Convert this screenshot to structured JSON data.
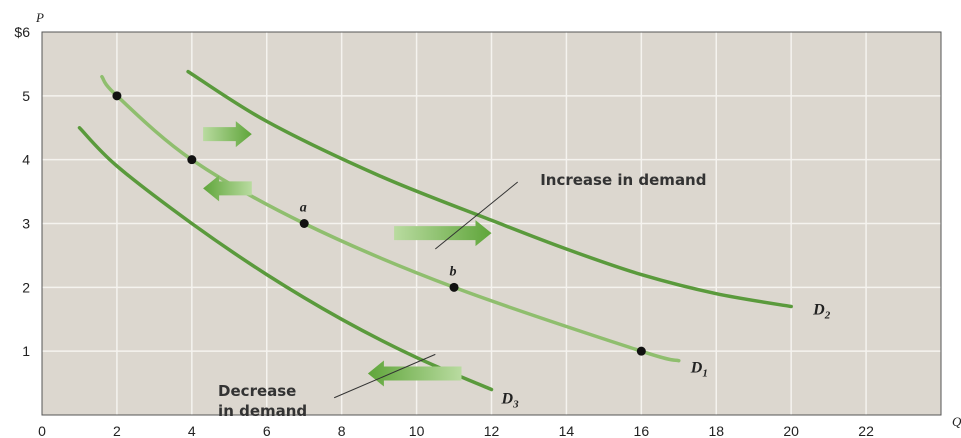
{
  "chart_data": {
    "type": "line",
    "y_axis_name": "P",
    "x_axis_name": "Q",
    "xlim": [
      0,
      24
    ],
    "ylim": [
      0,
      6
    ],
    "x_ticks": [
      0,
      2,
      4,
      6,
      8,
      10,
      12,
      14,
      16,
      18,
      20,
      22
    ],
    "x_tick_labels": [
      "0",
      "2",
      "4",
      "6",
      "8",
      "10",
      "12",
      "14",
      "16",
      "18",
      "20",
      "22"
    ],
    "y_ticks": [
      1,
      2,
      3,
      4,
      5,
      6
    ],
    "y_tick_labels": [
      "1",
      "2",
      "3",
      "4",
      "5",
      "$6"
    ],
    "grid": true,
    "colors": {
      "plot_background": "#dcd7cf",
      "grid": "#f5f3ef",
      "curve_outer": "#5a9a3c",
      "curve_d1": "#8fbe6e",
      "arrow_light": "#b9dba0",
      "arrow_dark": "#5fa53a",
      "point": "#111111"
    },
    "series": [
      {
        "name": "D1",
        "label_main": "D",
        "label_sub": "1",
        "points": [
          [
            1.6,
            5.3
          ],
          [
            2,
            5
          ],
          [
            4,
            4
          ],
          [
            7,
            3
          ],
          [
            11,
            2
          ],
          [
            16,
            1
          ],
          [
            17,
            0.85
          ]
        ]
      },
      {
        "name": "D2",
        "label_main": "D",
        "label_sub": "2",
        "points": [
          [
            3.9,
            5.38
          ],
          [
            6,
            4.6
          ],
          [
            9,
            3.75
          ],
          [
            12,
            3.05
          ],
          [
            14,
            2.6
          ],
          [
            16,
            2.2
          ],
          [
            18,
            1.9
          ],
          [
            20,
            1.7
          ]
        ]
      },
      {
        "name": "D3",
        "label_main": "D",
        "label_sub": "3",
        "points": [
          [
            1,
            4.5
          ],
          [
            2,
            3.9
          ],
          [
            4,
            3
          ],
          [
            6,
            2.2
          ],
          [
            8,
            1.5
          ],
          [
            10,
            0.9
          ],
          [
            12,
            0.4
          ]
        ]
      }
    ],
    "points": [
      {
        "x": 2,
        "y": 5,
        "label": ""
      },
      {
        "x": 4,
        "y": 4,
        "label": ""
      },
      {
        "x": 7,
        "y": 3,
        "label": "a"
      },
      {
        "x": 11,
        "y": 2,
        "label": "b"
      },
      {
        "x": 16,
        "y": 1,
        "label": ""
      }
    ],
    "arrows": [
      {
        "from": [
          4.3,
          4.4
        ],
        "to": [
          5.6,
          4.4
        ],
        "direction": "right"
      },
      {
        "from": [
          5.6,
          3.55
        ],
        "to": [
          4.3,
          3.55
        ],
        "direction": "left"
      },
      {
        "from": [
          9.4,
          2.85
        ],
        "to": [
          12.0,
          2.85
        ],
        "direction": "right"
      },
      {
        "from": [
          11.2,
          0.65
        ],
        "to": [
          8.7,
          0.65
        ],
        "direction": "left"
      }
    ],
    "annotations": [
      {
        "text": "Increase in demand",
        "lines": [
          "Increase in demand"
        ],
        "anchor": [
          13.3,
          3.6
        ],
        "leader_from": [
          12.7,
          3.65
        ],
        "leader_to": [
          10.5,
          2.6
        ],
        "align": "start"
      },
      {
        "text": "Decrease in demand",
        "lines": [
          "Decrease",
          "in demand"
        ],
        "anchor": [
          4.7,
          0.3
        ],
        "leader_from": [
          7.8,
          0.27
        ],
        "leader_to": [
          10.5,
          0.95
        ],
        "align": "start"
      }
    ]
  }
}
